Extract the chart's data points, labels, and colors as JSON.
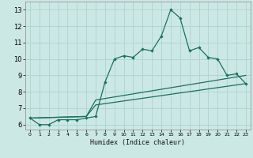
{
  "title": "",
  "xlabel": "Humidex (Indice chaleur)",
  "bg_color": "#cce8e4",
  "grid_color": "#aad4d0",
  "line_color": "#1a7060",
  "xlim": [
    -0.5,
    23.5
  ],
  "ylim": [
    5.7,
    13.5
  ],
  "xticks": [
    0,
    1,
    2,
    3,
    4,
    5,
    6,
    7,
    8,
    9,
    10,
    11,
    12,
    13,
    14,
    15,
    16,
    17,
    18,
    19,
    20,
    21,
    22,
    23
  ],
  "yticks": [
    6,
    7,
    8,
    9,
    10,
    11,
    12,
    13
  ],
  "line1_x": [
    0,
    1,
    2,
    3,
    4,
    5,
    6,
    7,
    8,
    9,
    10,
    11,
    12,
    13,
    14,
    15,
    16,
    17,
    18,
    19,
    20,
    21,
    22,
    23
  ],
  "line1_y": [
    6.4,
    6.0,
    6.0,
    6.3,
    6.3,
    6.3,
    6.4,
    6.5,
    8.6,
    10.0,
    10.2,
    10.1,
    10.6,
    10.5,
    11.4,
    13.0,
    12.5,
    10.5,
    10.7,
    10.1,
    10.0,
    9.0,
    9.1,
    8.5
  ],
  "line2_x": [
    0,
    6,
    7,
    23
  ],
  "line2_y": [
    6.4,
    6.5,
    7.2,
    8.5
  ],
  "line3_x": [
    0,
    6,
    7,
    23
  ],
  "line3_y": [
    6.4,
    6.5,
    7.5,
    9.0
  ]
}
